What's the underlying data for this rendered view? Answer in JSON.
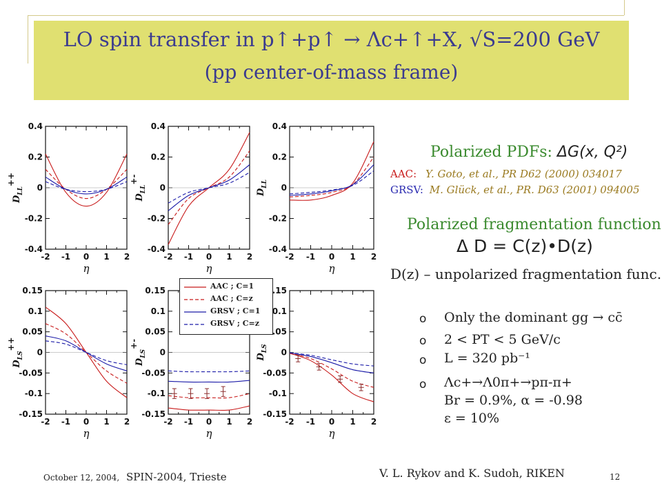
{
  "header": {
    "title_line1": "LO spin transfer in p↑+p↑ → Λc+↑+X, √S=200 GeV",
    "title_line2": "(pp center-of-mass frame)"
  },
  "chart_data": [
    {
      "type": "line",
      "ylabel": "D_LL^{++}",
      "xlabel": "η",
      "xlim": [
        -2,
        2
      ],
      "ylim": [
        -0.4,
        0.4
      ],
      "xticks": [
        "-2",
        "-1",
        "0",
        "1",
        "2"
      ],
      "yticks": [
        "-0.4",
        "-0.2",
        "0",
        "0.2",
        "0.4"
      ],
      "x": [
        -2,
        -1,
        0,
        1,
        2
      ],
      "series": [
        {
          "name": "AAC ; C=1",
          "values": [
            0.22,
            -0.03,
            -0.12,
            -0.03,
            0.22
          ]
        },
        {
          "name": "AAC ; C=z",
          "values": [
            0.12,
            -0.01,
            -0.07,
            -0.01,
            0.12
          ]
        },
        {
          "name": "GRSV ; C=1",
          "values": [
            0.07,
            -0.01,
            -0.04,
            -0.01,
            0.07
          ]
        },
        {
          "name": "GRSV ; C=z",
          "values": [
            0.04,
            -0.01,
            -0.025,
            -0.01,
            0.04
          ]
        }
      ]
    },
    {
      "type": "line",
      "ylabel": "D_LL^{+-}",
      "xlabel": "η",
      "xlim": [
        -2,
        2
      ],
      "ylim": [
        -0.4,
        0.4
      ],
      "xticks": [
        "-2",
        "-1",
        "0",
        "1",
        "2"
      ],
      "yticks": [
        "-0.4",
        "-0.2",
        "0",
        "0.2",
        "0.4"
      ],
      "x": [
        -2,
        -1,
        0,
        1,
        2
      ],
      "series": [
        {
          "name": "AAC ; C=1",
          "values": [
            -0.37,
            -0.12,
            0.0,
            0.12,
            0.36
          ]
        },
        {
          "name": "AAC ; C=z",
          "values": [
            -0.24,
            -0.07,
            0.0,
            0.07,
            0.24
          ]
        },
        {
          "name": "GRSV ; C=1",
          "values": [
            -0.15,
            -0.05,
            0.0,
            0.05,
            0.15
          ]
        },
        {
          "name": "GRSV ; C=z",
          "values": [
            -0.1,
            -0.03,
            0.0,
            0.03,
            0.1
          ]
        }
      ]
    },
    {
      "type": "line",
      "ylabel": "D_LL",
      "xlabel": "η",
      "xlim": [
        -2,
        2
      ],
      "ylim": [
        -0.4,
        0.4
      ],
      "xticks": [
        "-2",
        "-1",
        "0",
        "1",
        "2"
      ],
      "yticks": [
        "-0.4",
        "-0.2",
        "0",
        "0.2",
        "0.4"
      ],
      "x": [
        -2,
        -1,
        0,
        1,
        2
      ],
      "series": [
        {
          "name": "AAC ; C=1",
          "values": [
            -0.08,
            -0.08,
            -0.05,
            0.03,
            0.3
          ]
        },
        {
          "name": "AAC ; C=z",
          "values": [
            -0.06,
            -0.05,
            -0.03,
            0.02,
            0.2
          ]
        },
        {
          "name": "GRSV ; C=1",
          "values": [
            -0.05,
            -0.04,
            -0.02,
            0.02,
            0.15
          ]
        },
        {
          "name": "GRSV ; C=z",
          "values": [
            -0.04,
            -0.03,
            -0.015,
            0.015,
            0.11
          ]
        }
      ]
    },
    {
      "type": "line",
      "ylabel": "D_LS^{++}",
      "xlabel": "η",
      "xlim": [
        -2,
        2
      ],
      "ylim": [
        -0.15,
        0.15
      ],
      "xticks": [
        "-2",
        "-1",
        "0",
        "1",
        "2"
      ],
      "yticks": [
        "-0.15",
        "-0.1",
        "-0.05",
        "0",
        "0.05",
        "0.1",
        "0.15"
      ],
      "x": [
        -2,
        -1,
        0,
        1,
        2
      ],
      "series": [
        {
          "name": "AAC ; C=1",
          "values": [
            0.11,
            0.07,
            0.0,
            -0.07,
            -0.11
          ]
        },
        {
          "name": "AAC ; C=z",
          "values": [
            0.07,
            0.045,
            0.0,
            -0.045,
            -0.075
          ]
        },
        {
          "name": "GRSV ; C=1",
          "values": [
            0.04,
            0.028,
            0.0,
            -0.028,
            -0.045
          ]
        },
        {
          "name": "GRSV ; C=z",
          "values": [
            0.028,
            0.02,
            0.0,
            -0.02,
            -0.03
          ]
        }
      ]
    },
    {
      "type": "line",
      "ylabel": "D_LS^{+-}",
      "xlabel": "η",
      "xlim": [
        -2,
        2
      ],
      "ylim": [
        -0.15,
        0.15
      ],
      "xticks": [
        "-2",
        "-1",
        "0",
        "1",
        "2"
      ],
      "yticks": [
        "-0.15",
        "-0.1",
        "-0.05",
        "0",
        "0.05",
        "0.1",
        "0.15"
      ],
      "x": [
        -2,
        -1,
        0,
        1,
        2
      ],
      "series": [
        {
          "name": "AAC ; C=1",
          "values": [
            -0.135,
            -0.14,
            -0.14,
            -0.14,
            -0.13
          ]
        },
        {
          "name": "AAC ; C=z",
          "values": [
            -0.105,
            -0.11,
            -0.11,
            -0.11,
            -0.1
          ]
        },
        {
          "name": "GRSV ; C=1",
          "values": [
            -0.07,
            -0.072,
            -0.072,
            -0.072,
            -0.068
          ]
        },
        {
          "name": "GRSV ; C=z",
          "values": [
            -0.045,
            -0.047,
            -0.047,
            -0.047,
            -0.045
          ]
        }
      ],
      "errorbars": {
        "x": [
          -1.7,
          -0.9,
          -0.1,
          0.7
        ],
        "y": [
          -0.1,
          -0.1,
          -0.1,
          -0.095
        ],
        "err": [
          0.012,
          0.012,
          0.012,
          0.012
        ]
      }
    },
    {
      "type": "line",
      "ylabel": "D_LS",
      "xlabel": "η",
      "xlim": [
        -2,
        2
      ],
      "ylim": [
        -0.15,
        0.15
      ],
      "xticks": [
        "-2",
        "-1",
        "0",
        "1",
        "2"
      ],
      "yticks": [
        "-0.15",
        "-0.1",
        "-0.05",
        "0",
        "0.05",
        "0.1",
        "0.15"
      ],
      "x": [
        -2,
        -1,
        0,
        1,
        2
      ],
      "series": [
        {
          "name": "AAC ; C=1",
          "values": [
            -0.002,
            -0.02,
            -0.055,
            -0.1,
            -0.12
          ]
        },
        {
          "name": "AAC ; C=z",
          "values": [
            -0.002,
            -0.015,
            -0.04,
            -0.07,
            -0.085
          ]
        },
        {
          "name": "GRSV ; C=1",
          "values": [
            -0.001,
            -0.01,
            -0.025,
            -0.042,
            -0.05
          ]
        },
        {
          "name": "GRSV ; C=z",
          "values": [
            -0.001,
            -0.007,
            -0.018,
            -0.028,
            -0.033
          ]
        }
      ],
      "errorbars": {
        "x": [
          -1.6,
          -0.6,
          0.4,
          1.4
        ],
        "y": [
          -0.015,
          -0.035,
          -0.065,
          -0.085
        ],
        "err": [
          0.008,
          0.008,
          0.008,
          0.008
        ]
      }
    }
  ],
  "legend": {
    "entries": [
      {
        "label": "AAC ; C=1",
        "style": "solid",
        "color": "#c81a1a"
      },
      {
        "label": "AAC ; C=z",
        "style": "dashed",
        "color": "#c81a1a"
      },
      {
        "label": "GRSV ; C=1",
        "style": "solid",
        "color": "#1a1aa8"
      },
      {
        "label": "GRSV ; C=z",
        "style": "dashed",
        "color": "#1a1aa8"
      }
    ]
  },
  "right_panel": {
    "pdf_heading": "Polarized PDFs:",
    "pdf_formula": "ΔG(x, Q²)",
    "aac_label": "AAC:",
    "aac_ref": "Y. Goto, et al., PR D62 (2000) 034017",
    "grsv_label": "GRSV:",
    "grsv_ref": "M. Glück, et al., PR. D63 (2001) 094005",
    "frag_heading": "Polarized fragmentation function:",
    "frag_formula": "Δ D = C(z)•D(z)",
    "unpol_line": "D(z) – unpolarized fragmentation func.",
    "bullets": [
      "Only the dominant  gg → cc̄",
      "2 < PT < 5 GeV/c",
      "L = 320 pb⁻¹",
      "Λc+→Λ0π+→pπ-π+"
    ],
    "sub_lines": [
      "Br = 0.9%, α = -0.98",
      "ε = 10%"
    ],
    "bullet_glyph": "o"
  },
  "footer": {
    "date": "October 12, 2004,",
    "conference": "SPIN-2004, Trieste",
    "authors": "V. L. Rykov and K. Sudoh, RIKEN",
    "page": "12"
  },
  "colors": {
    "title_bg": "#e0e071",
    "title_text": "#3b3b8f",
    "aac": "#c81a1a",
    "grsv": "#1a1aa8",
    "green": "#3a8a2e"
  }
}
